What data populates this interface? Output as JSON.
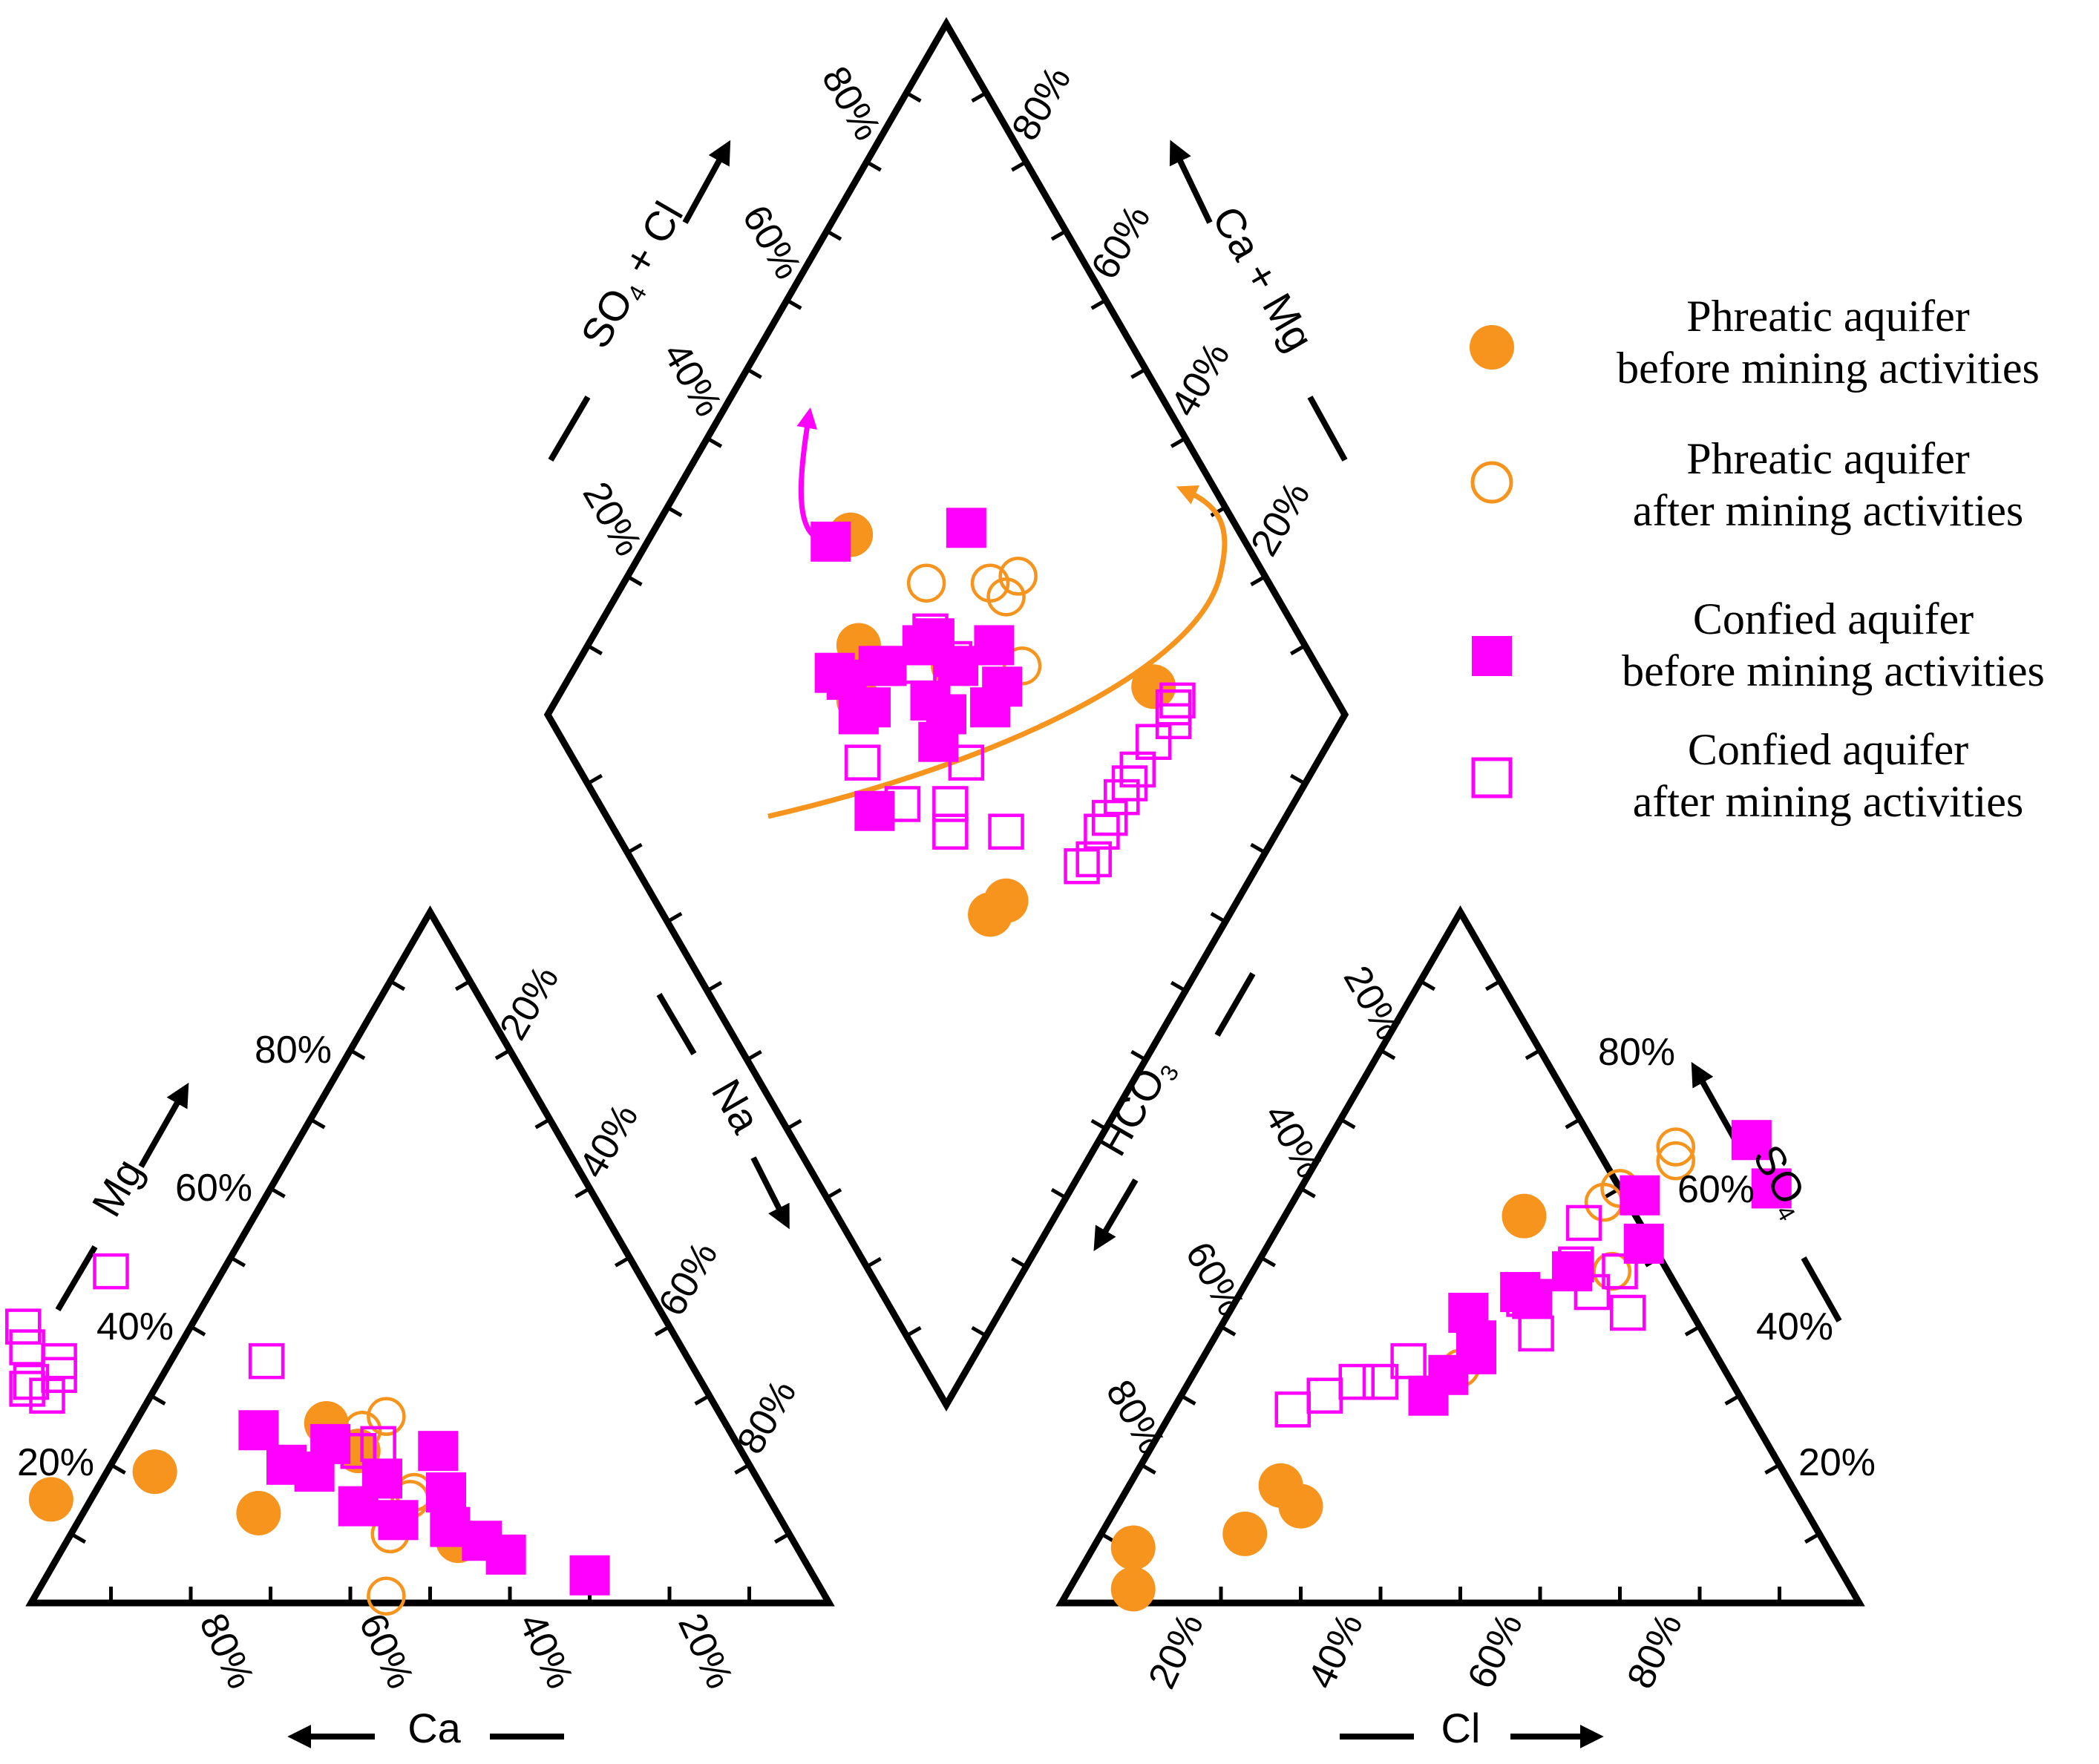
{
  "colors": {
    "axis": "#000000",
    "phreatic": "#F7941D",
    "confined": "#FF00FF"
  },
  "chart_data": {
    "type": "scatter",
    "subtype": "piper-diagram",
    "title": "",
    "axes": {
      "cation_triangle": {
        "left_label": "Mg",
        "bottom_label": "Ca",
        "left_ticks": [
          "20%",
          "40%",
          "60%",
          "80%"
        ],
        "right_ticks": [
          "20%",
          "40%",
          "60%",
          "80%"
        ],
        "bottom_ticks": [
          "80%",
          "60%",
          "40%",
          "20%"
        ]
      },
      "anion_triangle": {
        "right_label": "SO",
        "right_label_sub": "4",
        "bottom_label": "Cl",
        "right_ticks": [
          "80%",
          "60%",
          "40%",
          "20%"
        ],
        "left_ticks": [
          "20%",
          "40%",
          "60%",
          "80%"
        ],
        "bottom_ticks": [
          "20%",
          "40%",
          "60%",
          "80%"
        ]
      },
      "diamond": {
        "upper_left_label": "SO",
        "upper_left_label_sub": "4",
        "upper_left_label_rest": " + Cl",
        "upper_right_label": "Ca + Mg",
        "lower_left_label": "Na",
        "lower_right_label": "HCO",
        "lower_right_label_sub": "3",
        "upper_left_ticks": [
          "20%",
          "40%",
          "60%",
          "80%"
        ],
        "upper_right_ticks": [
          "80%",
          "60%",
          "40%",
          "20%"
        ]
      }
    },
    "legend": {
      "placement": "right",
      "entries": [
        {
          "line1": "Phreatic aquifer",
          "line2": "before mining activities",
          "marker": "filled-circle"
        },
        {
          "line1": "Phreatic aquifer",
          "line2": "after mining activities",
          "marker": "open-circle"
        },
        {
          "line1": "Confied aquifer",
          "line2": "before mining activities",
          "marker": "filled-square"
        },
        {
          "line1": "Confied aquifer",
          "line2": "after mining activities",
          "marker": "open-square"
        }
      ]
    },
    "series": [
      {
        "name": "Phreatic aquifer before mining activities",
        "cation_mg_ca_pct": [
          [
            15,
            90
          ],
          [
            19,
            75
          ],
          [
            13,
            65
          ],
          [
            26,
            50
          ],
          [
            22,
            48
          ],
          [
            9,
            42
          ]
        ],
        "anion_so4_cl_pct": [
          [
            56,
            30
          ],
          [
            2,
            8
          ],
          [
            8,
            5
          ],
          [
            10,
            18
          ],
          [
            17,
            19
          ],
          [
            14,
            23
          ]
        ],
        "diamond_so4cl_camg_pct": [
          [
            78,
            26
          ],
          [
            40,
            62
          ],
          [
            44,
            66
          ],
          [
            41,
            30
          ],
          [
            44,
            29
          ],
          [
            51,
            75
          ]
        ]
      },
      {
        "name": "Phreatic aquifer after mining activities",
        "cation_mg_ca_pct": [
          [
            27,
            42
          ],
          [
            15,
            45
          ],
          [
            10,
            50
          ],
          [
            16,
            44
          ],
          [
            1,
            55
          ],
          [
            25,
            46
          ]
        ],
        "anion_so4_cl_pct": [
          [
            66,
            44
          ],
          [
            60,
            40
          ],
          [
            64,
            45
          ],
          [
            58,
            39
          ],
          [
            34,
            33
          ],
          [
            48,
            45
          ]
        ],
        "diamond_so4cl_camg_pct": [
          [
            63,
            44
          ],
          [
            66,
            51
          ],
          [
            69,
            51
          ],
          [
            65,
            54
          ],
          [
            54,
            53
          ],
          [
            57,
            62
          ]
        ]
      },
      {
        "name": "Confied aquifer before mining activities",
        "cation_mg_ca_pct": [
          [
            23,
            51
          ],
          [
            19,
            55
          ],
          [
            12,
            48
          ],
          [
            14,
            52
          ],
          [
            9,
            39
          ],
          [
            25,
            59
          ],
          [
            20,
            58
          ],
          [
            7,
            37
          ],
          [
            16,
            40
          ],
          [
            11,
            42
          ],
          [
            22,
            38
          ],
          [
            18,
            47
          ],
          [
            4,
            28
          ]
        ],
        "anion_so4_cl_pct": [
          [
            67,
            53
          ],
          [
            60,
            59
          ],
          [
            59,
            43
          ],
          [
            52,
            47
          ],
          [
            48,
            40
          ],
          [
            45,
            35
          ],
          [
            38,
            33
          ],
          [
            42,
            30
          ],
          [
            36,
            34
          ],
          [
            44,
            37
          ],
          [
            30,
            31
          ],
          [
            33,
            32
          ]
        ],
        "diamond_so4cl_camg_pct": [
          [
            56,
            45
          ],
          [
            61,
            49
          ],
          [
            59,
            45
          ],
          [
            55,
            52
          ],
          [
            54,
            57
          ],
          [
            52,
            58
          ],
          [
            50,
            50
          ],
          [
            49,
            53
          ],
          [
            47,
            49
          ],
          [
            46,
            61
          ],
          [
            45,
            62
          ],
          [
            41,
            60
          ],
          [
            39,
            61
          ],
          [
            40,
            65
          ],
          [
            39,
            67
          ],
          [
            66,
            61
          ],
          [
            48,
            77
          ],
          [
            34,
            52
          ]
        ]
      },
      {
        "name": "Confied aquifer after mining activities",
        "cation_mg_ca_pct": [
          [
            40,
            81
          ],
          [
            37,
            82
          ],
          [
            35,
            79
          ],
          [
            33,
            80
          ],
          [
            32,
            84
          ],
          [
            31,
            85
          ],
          [
            30,
            83
          ],
          [
            48,
            66
          ],
          [
            35,
            53
          ],
          [
            23,
            45
          ],
          [
            22,
            48
          ]
        ],
        "anion_so4_cl_pct": [
          [
            35,
            26
          ],
          [
            32,
            21
          ],
          [
            28,
            15
          ],
          [
            32,
            24
          ],
          [
            30,
            18
          ],
          [
            45,
            44
          ],
          [
            48,
            46
          ],
          [
            42,
            50
          ],
          [
            55,
            38
          ],
          [
            44,
            36
          ],
          [
            49,
            40
          ],
          [
            39,
            40
          ]
        ],
        "diamond_so4cl_camg_pct": [
          [
            80,
            22
          ],
          [
            79,
            22
          ],
          [
            78,
            21
          ],
          [
            74,
            22
          ],
          [
            70,
            22
          ],
          [
            68,
            22
          ],
          [
            66,
            22
          ],
          [
            63,
            22
          ],
          [
            61,
            22
          ],
          [
            58,
            21
          ],
          [
            56,
            22
          ],
          [
            55,
            53
          ],
          [
            49,
            44
          ],
          [
            44,
            43
          ],
          [
            42,
            41
          ],
          [
            50,
            57
          ],
          [
            38,
            49
          ],
          [
            36,
            57
          ],
          [
            53,
            57
          ],
          [
            54,
            58
          ],
          [
            49,
            34
          ]
        ]
      }
    ]
  }
}
